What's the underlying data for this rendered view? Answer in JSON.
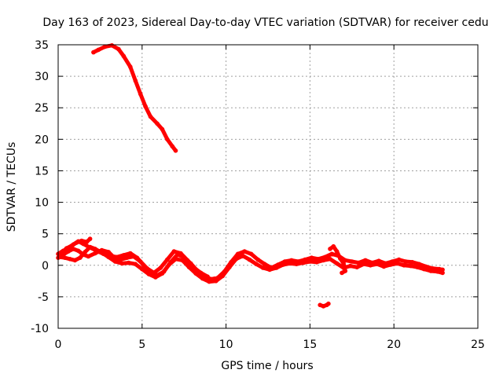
{
  "chart_data": {
    "type": "scatter",
    "title": "Day 163 of 2023, Sidereal Day-to-day VTEC variation (SDTVAR) for receiver cedu",
    "xlabel": "GPS time / hours",
    "ylabel": "SDTVAR / TECUs",
    "xlim": [
      0,
      25
    ],
    "ylim": [
      -10,
      35
    ],
    "xticks": [
      0,
      5,
      10,
      15,
      20,
      25
    ],
    "yticks": [
      -10,
      -5,
      0,
      5,
      10,
      15,
      20,
      25,
      30,
      35
    ],
    "grid": true,
    "legend": "none",
    "series": [
      {
        "name": "sdtvar",
        "color": "#ff0000",
        "segments": [
          [
            [
              2.1,
              33.8
            ],
            [
              2.4,
              34.2
            ],
            [
              2.8,
              34.7
            ],
            [
              3.2,
              34.9
            ],
            [
              3.6,
              34.3
            ],
            [
              3.9,
              33.2
            ],
            [
              4.3,
              31.5
            ],
            [
              4.6,
              29.3
            ],
            [
              4.9,
              27.2
            ],
            [
              5.2,
              25.2
            ],
            [
              5.5,
              23.6
            ],
            [
              5.9,
              22.5
            ],
            [
              6.2,
              21.6
            ],
            [
              6.5,
              20.0
            ],
            [
              6.8,
              18.9
            ],
            [
              7.0,
              18.2
            ]
          ],
          [
            [
              0.0,
              1.8
            ],
            [
              0.3,
              2.3
            ],
            [
              0.6,
              2.6
            ],
            [
              0.9,
              3.3
            ],
            [
              1.2,
              3.8
            ],
            [
              1.5,
              3.4
            ],
            [
              1.9,
              2.8
            ],
            [
              2.3,
              2.3
            ],
            [
              2.7,
              1.8
            ],
            [
              3.1,
              1.5
            ],
            [
              3.5,
              1.3
            ],
            [
              3.9,
              1.6
            ],
            [
              4.3,
              1.9
            ],
            [
              4.7,
              1.2
            ],
            [
              5.1,
              0.0
            ],
            [
              5.5,
              -1.0
            ],
            [
              5.9,
              -1.6
            ],
            [
              6.3,
              -1.0
            ],
            [
              6.7,
              0.5
            ],
            [
              7.1,
              1.7
            ],
            [
              7.5,
              1.3
            ],
            [
              7.9,
              0.3
            ],
            [
              8.3,
              -0.9
            ],
            [
              8.7,
              -1.7
            ],
            [
              9.1,
              -2.2
            ],
            [
              9.5,
              -2.0
            ],
            [
              9.9,
              -1.0
            ],
            [
              10.3,
              0.5
            ],
            [
              10.7,
              1.8
            ],
            [
              11.1,
              2.2
            ],
            [
              11.5,
              1.8
            ],
            [
              11.9,
              0.9
            ],
            [
              12.3,
              0.2
            ],
            [
              12.7,
              -0.4
            ],
            [
              13.1,
              0.1
            ],
            [
              13.5,
              0.6
            ],
            [
              13.9,
              0.8
            ],
            [
              14.3,
              0.6
            ],
            [
              14.7,
              0.9
            ],
            [
              15.1,
              1.2
            ],
            [
              15.5,
              1.0
            ],
            [
              15.9,
              1.3
            ],
            [
              16.3,
              1.8
            ],
            [
              16.7,
              1.5
            ],
            [
              17.1,
              0.8
            ],
            [
              17.5,
              0.6
            ],
            [
              17.9,
              0.4
            ],
            [
              18.3,
              0.8
            ],
            [
              18.7,
              0.4
            ],
            [
              19.1,
              0.7
            ],
            [
              19.5,
              0.3
            ],
            [
              19.9,
              0.6
            ],
            [
              20.3,
              0.9
            ],
            [
              20.7,
              0.6
            ],
            [
              21.1,
              0.5
            ],
            [
              21.5,
              0.2
            ],
            [
              21.9,
              -0.2
            ],
            [
              22.3,
              -0.5
            ],
            [
              22.7,
              -0.6
            ],
            [
              22.9,
              -0.7
            ]
          ],
          [
            [
              0.1,
              1.3
            ],
            [
              0.4,
              1.2
            ],
            [
              0.7,
              1.0
            ],
            [
              1.0,
              0.8
            ],
            [
              1.3,
              1.2
            ],
            [
              1.6,
              2.1
            ],
            [
              1.9,
              2.9
            ],
            [
              2.2,
              2.6
            ],
            [
              2.6,
              2.0
            ],
            [
              3.0,
              1.3
            ],
            [
              3.4,
              0.6
            ],
            [
              3.8,
              0.3
            ],
            [
              4.2,
              0.4
            ],
            [
              4.6,
              0.2
            ],
            [
              5.0,
              -0.6
            ],
            [
              5.4,
              -1.4
            ],
            [
              5.8,
              -1.9
            ],
            [
              6.2,
              -1.3
            ],
            [
              6.6,
              0.1
            ],
            [
              7.0,
              1.0
            ],
            [
              7.4,
              0.8
            ],
            [
              7.8,
              -0.3
            ],
            [
              8.2,
              -1.3
            ],
            [
              8.6,
              -2.1
            ],
            [
              9.0,
              -2.6
            ],
            [
              9.4,
              -2.5
            ],
            [
              9.8,
              -1.7
            ],
            [
              10.2,
              -0.3
            ],
            [
              10.6,
              1.0
            ],
            [
              11.0,
              1.5
            ],
            [
              11.4,
              0.9
            ],
            [
              11.8,
              0.2
            ],
            [
              12.2,
              -0.4
            ],
            [
              12.6,
              -0.7
            ],
            [
              13.0,
              -0.4
            ],
            [
              13.4,
              0.1
            ],
            [
              13.8,
              0.3
            ],
            [
              14.2,
              0.2
            ],
            [
              14.6,
              0.4
            ],
            [
              15.0,
              0.6
            ],
            [
              15.4,
              0.5
            ],
            [
              15.8,
              0.8
            ],
            [
              16.2,
              1.0
            ],
            [
              16.6,
              0.3
            ],
            [
              17.0,
              -0.4
            ],
            [
              17.4,
              -0.1
            ],
            [
              17.8,
              -0.3
            ],
            [
              18.2,
              0.2
            ],
            [
              18.6,
              0.0
            ],
            [
              19.0,
              0.2
            ],
            [
              19.4,
              -0.2
            ],
            [
              19.8,
              0.1
            ],
            [
              20.2,
              0.3
            ],
            [
              20.6,
              0.0
            ],
            [
              21.0,
              -0.1
            ],
            [
              21.4,
              -0.3
            ],
            [
              21.8,
              -0.6
            ],
            [
              22.2,
              -0.9
            ],
            [
              22.6,
              -1.0
            ],
            [
              22.9,
              -1.2
            ]
          ],
          [
            [
              0.0,
              1.2
            ],
            [
              0.3,
              1.7
            ],
            [
              0.6,
              2.2
            ],
            [
              0.9,
              2.6
            ],
            [
              1.2,
              2.3
            ],
            [
              1.5,
              1.7
            ],
            [
              1.8,
              1.4
            ],
            [
              2.2,
              1.9
            ],
            [
              2.6,
              2.4
            ],
            [
              3.0,
              2.1
            ],
            [
              3.3,
              1.3
            ],
            [
              3.7,
              0.9
            ],
            [
              4.1,
              1.2
            ],
            [
              4.5,
              1.4
            ],
            [
              4.9,
              0.6
            ],
            [
              5.3,
              -0.5
            ],
            [
              5.7,
              -1.2
            ],
            [
              6.1,
              -0.4
            ],
            [
              6.5,
              0.9
            ],
            [
              6.9,
              2.2
            ],
            [
              7.3,
              1.9
            ],
            [
              7.7,
              0.8
            ],
            [
              8.1,
              -0.4
            ],
            [
              8.5,
              -1.2
            ],
            [
              8.9,
              -1.8
            ]
          ],
          [
            [
              0.2,
              2.0
            ],
            [
              0.5,
              2.7
            ],
            [
              0.8,
              3.1
            ],
            [
              1.1,
              3.6
            ],
            [
              1.4,
              3.9
            ],
            [
              1.7,
              3.7
            ],
            [
              1.9,
              4.2
            ]
          ],
          [
            [
              15.6,
              -6.3
            ],
            [
              15.8,
              -6.5
            ],
            [
              16.0,
              -6.3
            ],
            [
              16.1,
              -6.1
            ]
          ],
          [
            [
              16.2,
              2.6
            ],
            [
              16.4,
              3.0
            ],
            [
              16.6,
              2.2
            ],
            [
              16.8,
              1.1
            ],
            [
              17.0,
              0.3
            ],
            [
              17.1,
              -0.9
            ],
            [
              16.9,
              -1.2
            ]
          ]
        ]
      }
    ]
  }
}
